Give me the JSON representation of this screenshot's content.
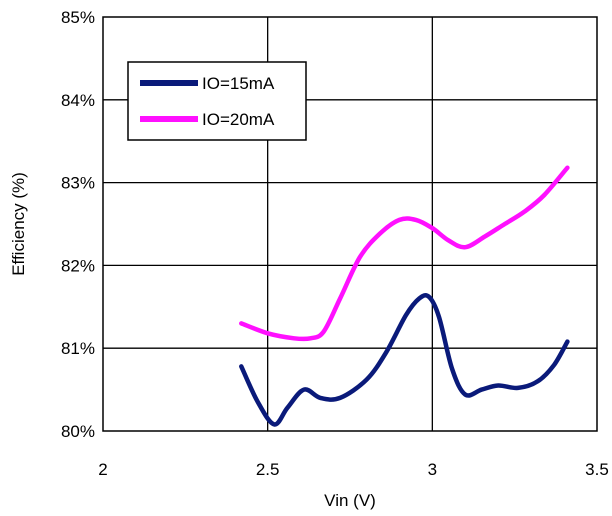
{
  "chart_data": {
    "type": "line",
    "xlabel": "Vin (V)",
    "ylabel": "Efficiency (%)",
    "xlim": [
      2,
      3.5
    ],
    "ylim": [
      80,
      85
    ],
    "x_ticks": [
      {
        "value": 2,
        "label": "2"
      },
      {
        "value": 2.5,
        "label": "2.5"
      },
      {
        "value": 3,
        "label": "3"
      },
      {
        "value": 3.5,
        "label": "3.5"
      }
    ],
    "y_ticks": [
      {
        "value": 80,
        "label": "80%"
      },
      {
        "value": 81,
        "label": "81%"
      },
      {
        "value": 82,
        "label": "82%"
      },
      {
        "value": 83,
        "label": "83%"
      },
      {
        "value": 84,
        "label": "84%"
      },
      {
        "value": 85,
        "label": "85%"
      }
    ],
    "grid": true,
    "legend_position": "top-left",
    "series": [
      {
        "name": "IO=15mA",
        "color": "#0a1a7a",
        "x": [
          2.42,
          2.47,
          2.52,
          2.56,
          2.61,
          2.66,
          2.72,
          2.8,
          2.86,
          2.92,
          2.96,
          2.99,
          3.02,
          3.06,
          3.1,
          3.15,
          3.2,
          3.26,
          3.32,
          3.37,
          3.41
        ],
        "y": [
          80.78,
          80.35,
          80.08,
          80.28,
          80.5,
          80.4,
          80.4,
          80.62,
          80.95,
          81.4,
          81.6,
          81.62,
          81.38,
          80.75,
          80.44,
          80.5,
          80.55,
          80.52,
          80.6,
          80.8,
          81.08
        ]
      },
      {
        "name": "IO=20mA",
        "color": "#ff10ff",
        "x": [
          2.42,
          2.5,
          2.58,
          2.63,
          2.67,
          2.72,
          2.78,
          2.84,
          2.9,
          2.95,
          3.0,
          3.05,
          3.1,
          3.16,
          3.22,
          3.28,
          3.34,
          3.41
        ],
        "y": [
          81.3,
          81.18,
          81.12,
          81.12,
          81.2,
          81.6,
          82.1,
          82.38,
          82.55,
          82.55,
          82.45,
          82.3,
          82.22,
          82.35,
          82.5,
          82.65,
          82.85,
          83.18
        ]
      }
    ]
  }
}
